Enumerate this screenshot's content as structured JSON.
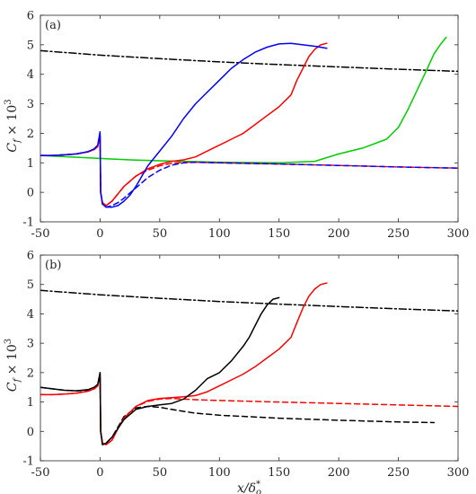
{
  "chart_data": [
    {
      "type": "line",
      "panel_label": "(a)",
      "ylabel": "C_f × 10^3",
      "xlabel": "",
      "xlim": [
        -50,
        300
      ],
      "ylim": [
        -1,
        6
      ],
      "xticks": [
        -50,
        0,
        50,
        100,
        150,
        200,
        250,
        300
      ],
      "yticks": [
        -1,
        0,
        1,
        2,
        3,
        4,
        5,
        6
      ],
      "series": [
        {
          "color": "#000000",
          "dash": "dashdot",
          "x": [
            -50,
            0,
            50,
            100,
            150,
            200,
            250,
            300
          ],
          "y": [
            4.8,
            4.65,
            4.53,
            4.42,
            4.33,
            4.25,
            4.17,
            4.1
          ]
        },
        {
          "color": "#00cc00",
          "dash": "solid",
          "x": [
            -50,
            -25,
            0,
            25,
            50,
            100,
            150,
            180,
            200,
            220,
            240,
            250,
            258,
            265,
            272,
            280,
            285,
            290
          ],
          "y": [
            1.25,
            1.2,
            1.15,
            1.1,
            1.07,
            1.02,
            1.0,
            1.05,
            1.3,
            1.5,
            1.8,
            2.2,
            2.8,
            3.4,
            4.0,
            4.7,
            5.0,
            5.25
          ]
        },
        {
          "color": "#ff0000",
          "dash": "dashed",
          "x": [
            -50,
            -40,
            -30,
            -20,
            -10,
            -5,
            -2,
            0,
            0.5,
            2,
            5,
            10,
            15,
            20,
            30,
            40,
            50,
            60,
            70,
            80,
            100,
            150,
            200,
            250,
            300
          ],
          "y": [
            1.25,
            1.25,
            1.27,
            1.3,
            1.37,
            1.45,
            1.55,
            1.9,
            0.0,
            -0.35,
            -0.45,
            -0.3,
            -0.05,
            0.2,
            0.55,
            0.75,
            0.9,
            0.98,
            1.02,
            1.02,
            1.0,
            0.96,
            0.91,
            0.86,
            0.82
          ]
        },
        {
          "color": "#0000ff",
          "dash": "dashed",
          "x": [
            -50,
            -40,
            -30,
            -20,
            -10,
            -5,
            -2,
            0,
            0.5,
            2,
            5,
            10,
            15,
            20,
            30,
            40,
            50,
            60,
            70,
            80,
            100,
            150,
            200,
            250,
            300
          ],
          "y": [
            1.25,
            1.25,
            1.27,
            1.3,
            1.38,
            1.47,
            1.58,
            1.95,
            0.0,
            -0.4,
            -0.5,
            -0.45,
            -0.35,
            -0.2,
            0.15,
            0.5,
            0.75,
            0.92,
            1.0,
            1.02,
            1.0,
            0.96,
            0.91,
            0.86,
            0.82
          ]
        },
        {
          "color": "#ff0000",
          "dash": "solid",
          "x": [
            -50,
            -40,
            -30,
            -20,
            -10,
            -5,
            -2,
            0,
            0.5,
            2,
            5,
            10,
            15,
            20,
            30,
            40,
            50,
            60,
            70,
            80,
            90,
            100,
            110,
            120,
            130,
            140,
            150,
            160,
            165,
            170,
            175,
            180,
            185,
            190
          ],
          "y": [
            1.25,
            1.25,
            1.27,
            1.3,
            1.37,
            1.45,
            1.55,
            1.95,
            0.0,
            -0.35,
            -0.45,
            -0.3,
            -0.05,
            0.2,
            0.55,
            0.8,
            0.95,
            1.05,
            1.1,
            1.2,
            1.4,
            1.6,
            1.8,
            2.0,
            2.3,
            2.6,
            2.9,
            3.3,
            3.8,
            4.2,
            4.6,
            4.85,
            5.0,
            5.05
          ]
        },
        {
          "color": "#0000ff",
          "dash": "solid",
          "x": [
            -50,
            -40,
            -30,
            -20,
            -10,
            -5,
            -2,
            0,
            0.5,
            2,
            5,
            10,
            15,
            20,
            25,
            30,
            40,
            50,
            60,
            70,
            80,
            90,
            100,
            110,
            120,
            130,
            140,
            150,
            160,
            170,
            180,
            190
          ],
          "y": [
            1.25,
            1.25,
            1.27,
            1.3,
            1.38,
            1.47,
            1.6,
            2.05,
            0.0,
            -0.4,
            -0.5,
            -0.5,
            -0.45,
            -0.3,
            -0.1,
            0.2,
            0.9,
            1.4,
            1.9,
            2.5,
            3.0,
            3.4,
            3.8,
            4.2,
            4.5,
            4.75,
            4.92,
            5.03,
            5.05,
            5.0,
            4.95,
            4.88
          ]
        }
      ]
    },
    {
      "type": "line",
      "panel_label": "(b)",
      "ylabel": "C_f × 10^3",
      "xlabel": "x/δ*_o",
      "xlim": [
        -50,
        300
      ],
      "ylim": [
        -1,
        6
      ],
      "xticks": [
        -50,
        0,
        50,
        100,
        150,
        200,
        250,
        300
      ],
      "yticks": [
        -1,
        0,
        1,
        2,
        3,
        4,
        5,
        6
      ],
      "series": [
        {
          "color": "#000000",
          "dash": "dashdot",
          "x": [
            -50,
            0,
            50,
            100,
            150,
            200,
            250,
            300
          ],
          "y": [
            4.8,
            4.65,
            4.53,
            4.42,
            4.33,
            4.25,
            4.17,
            4.1
          ]
        },
        {
          "color": "#ff0000",
          "dash": "dashed",
          "x": [
            -50,
            -40,
            -30,
            -20,
            -10,
            -5,
            -2,
            0,
            0.5,
            2,
            5,
            10,
            15,
            20,
            30,
            40,
            50,
            60,
            70,
            80,
            100,
            150,
            200,
            250,
            300
          ],
          "y": [
            1.25,
            1.25,
            1.27,
            1.3,
            1.37,
            1.45,
            1.55,
            1.95,
            0.0,
            -0.4,
            -0.45,
            -0.3,
            0.1,
            0.45,
            0.85,
            1.02,
            1.1,
            1.12,
            1.1,
            1.08,
            1.05,
            1.0,
            0.95,
            0.9,
            0.85
          ]
        },
        {
          "color": "#000000",
          "dash": "dashed",
          "x": [
            -50,
            -40,
            -30,
            -20,
            -10,
            -5,
            -2,
            0,
            0.5,
            2,
            5,
            10,
            15,
            20,
            30,
            40,
            50,
            60,
            70,
            80,
            100,
            150,
            200,
            250,
            280
          ],
          "y": [
            1.5,
            1.45,
            1.4,
            1.38,
            1.4,
            1.45,
            1.55,
            1.9,
            0.0,
            -0.45,
            -0.4,
            -0.2,
            0.15,
            0.5,
            0.8,
            0.85,
            0.82,
            0.75,
            0.68,
            0.62,
            0.55,
            0.45,
            0.38,
            0.32,
            0.3
          ]
        },
        {
          "color": "#ff0000",
          "dash": "solid",
          "x": [
            -50,
            -40,
            -30,
            -20,
            -10,
            -5,
            -2,
            0,
            0.5,
            2,
            5,
            10,
            15,
            20,
            30,
            40,
            50,
            60,
            70,
            80,
            90,
            100,
            110,
            120,
            130,
            140,
            150,
            160,
            165,
            170,
            175,
            180,
            185,
            190
          ],
          "y": [
            1.25,
            1.25,
            1.27,
            1.3,
            1.37,
            1.45,
            1.55,
            2.0,
            0.0,
            -0.4,
            -0.45,
            -0.3,
            0.1,
            0.45,
            0.85,
            1.05,
            1.12,
            1.15,
            1.18,
            1.22,
            1.35,
            1.55,
            1.75,
            1.95,
            2.2,
            2.5,
            2.8,
            3.2,
            3.7,
            4.2,
            4.6,
            4.85,
            5.0,
            5.05
          ]
        },
        {
          "color": "#000000",
          "dash": "solid",
          "x": [
            -50,
            -40,
            -30,
            -20,
            -10,
            -5,
            -2,
            0,
            0.5,
            2,
            5,
            10,
            15,
            20,
            30,
            40,
            50,
            60,
            70,
            80,
            90,
            100,
            110,
            120,
            125,
            130,
            135,
            140,
            145,
            150
          ],
          "y": [
            1.5,
            1.45,
            1.4,
            1.38,
            1.42,
            1.5,
            1.6,
            2.0,
            0.0,
            -0.45,
            -0.4,
            -0.2,
            0.1,
            0.4,
            0.75,
            0.85,
            0.9,
            0.95,
            1.1,
            1.4,
            1.8,
            2.0,
            2.4,
            2.9,
            3.2,
            3.6,
            4.0,
            4.3,
            4.5,
            4.55
          ]
        }
      ]
    }
  ]
}
